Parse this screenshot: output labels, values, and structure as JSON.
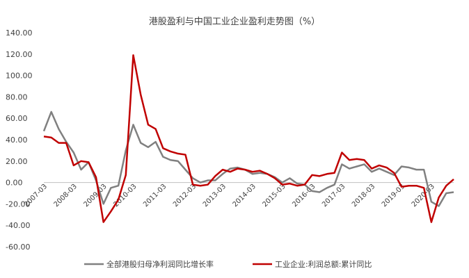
{
  "chart_data": {
    "type": "line",
    "title": "港股盈利与中国工业企业盈利走势图（%）",
    "y_ticks": [
      "140.00",
      "120.00",
      "100.00",
      "80.00",
      "60.00",
      "40.00",
      "20.00",
      "0.00",
      "-20.00",
      "-40.00",
      "-60.00"
    ],
    "ylim": [
      -60,
      140
    ],
    "x_ticks": [
      "2007-03",
      "2008-03",
      "2009-03",
      "2010-03",
      "2011-03",
      "2012-03",
      "2013-03",
      "2014-03",
      "2015-03",
      "2016-03",
      "2017-03",
      "2018-03",
      "2019-03",
      "2020-03"
    ],
    "grid": false,
    "legend_position": "bottom",
    "series": [
      {
        "name": "全部港股归母净利润同比增长率",
        "color": "#808080",
        "values": [
          48,
          66,
          50,
          38,
          28,
          12,
          19,
          2,
          -20,
          -5,
          -3,
          30,
          54,
          37,
          33,
          38,
          24,
          21,
          20,
          12,
          4,
          0,
          2,
          2,
          8,
          13,
          14,
          12,
          8,
          9,
          8,
          5,
          0,
          4,
          -1,
          -2,
          -8,
          -9,
          -5,
          -2,
          17,
          13,
          15,
          17,
          10,
          13,
          10,
          7,
          15,
          14,
          12,
          12,
          -18,
          -22,
          -10,
          -9
        ]
      },
      {
        "name": "工业企业:利润总额:累计同比",
        "color": "#c00000",
        "values": [
          43,
          42,
          37,
          37,
          16,
          20,
          19,
          5,
          -37,
          -27,
          -16,
          7,
          119,
          82,
          54,
          50,
          32,
          29,
          27,
          26,
          -2,
          -3,
          -2,
          6,
          12,
          10,
          13,
          12,
          10,
          11,
          8,
          4,
          -2,
          -1,
          -3,
          -2,
          7,
          6,
          8,
          9,
          28,
          21,
          22,
          21,
          13,
          16,
          14,
          9,
          -4,
          -3,
          -3,
          -5,
          -37,
          -14,
          -3,
          3
        ]
      }
    ]
  }
}
